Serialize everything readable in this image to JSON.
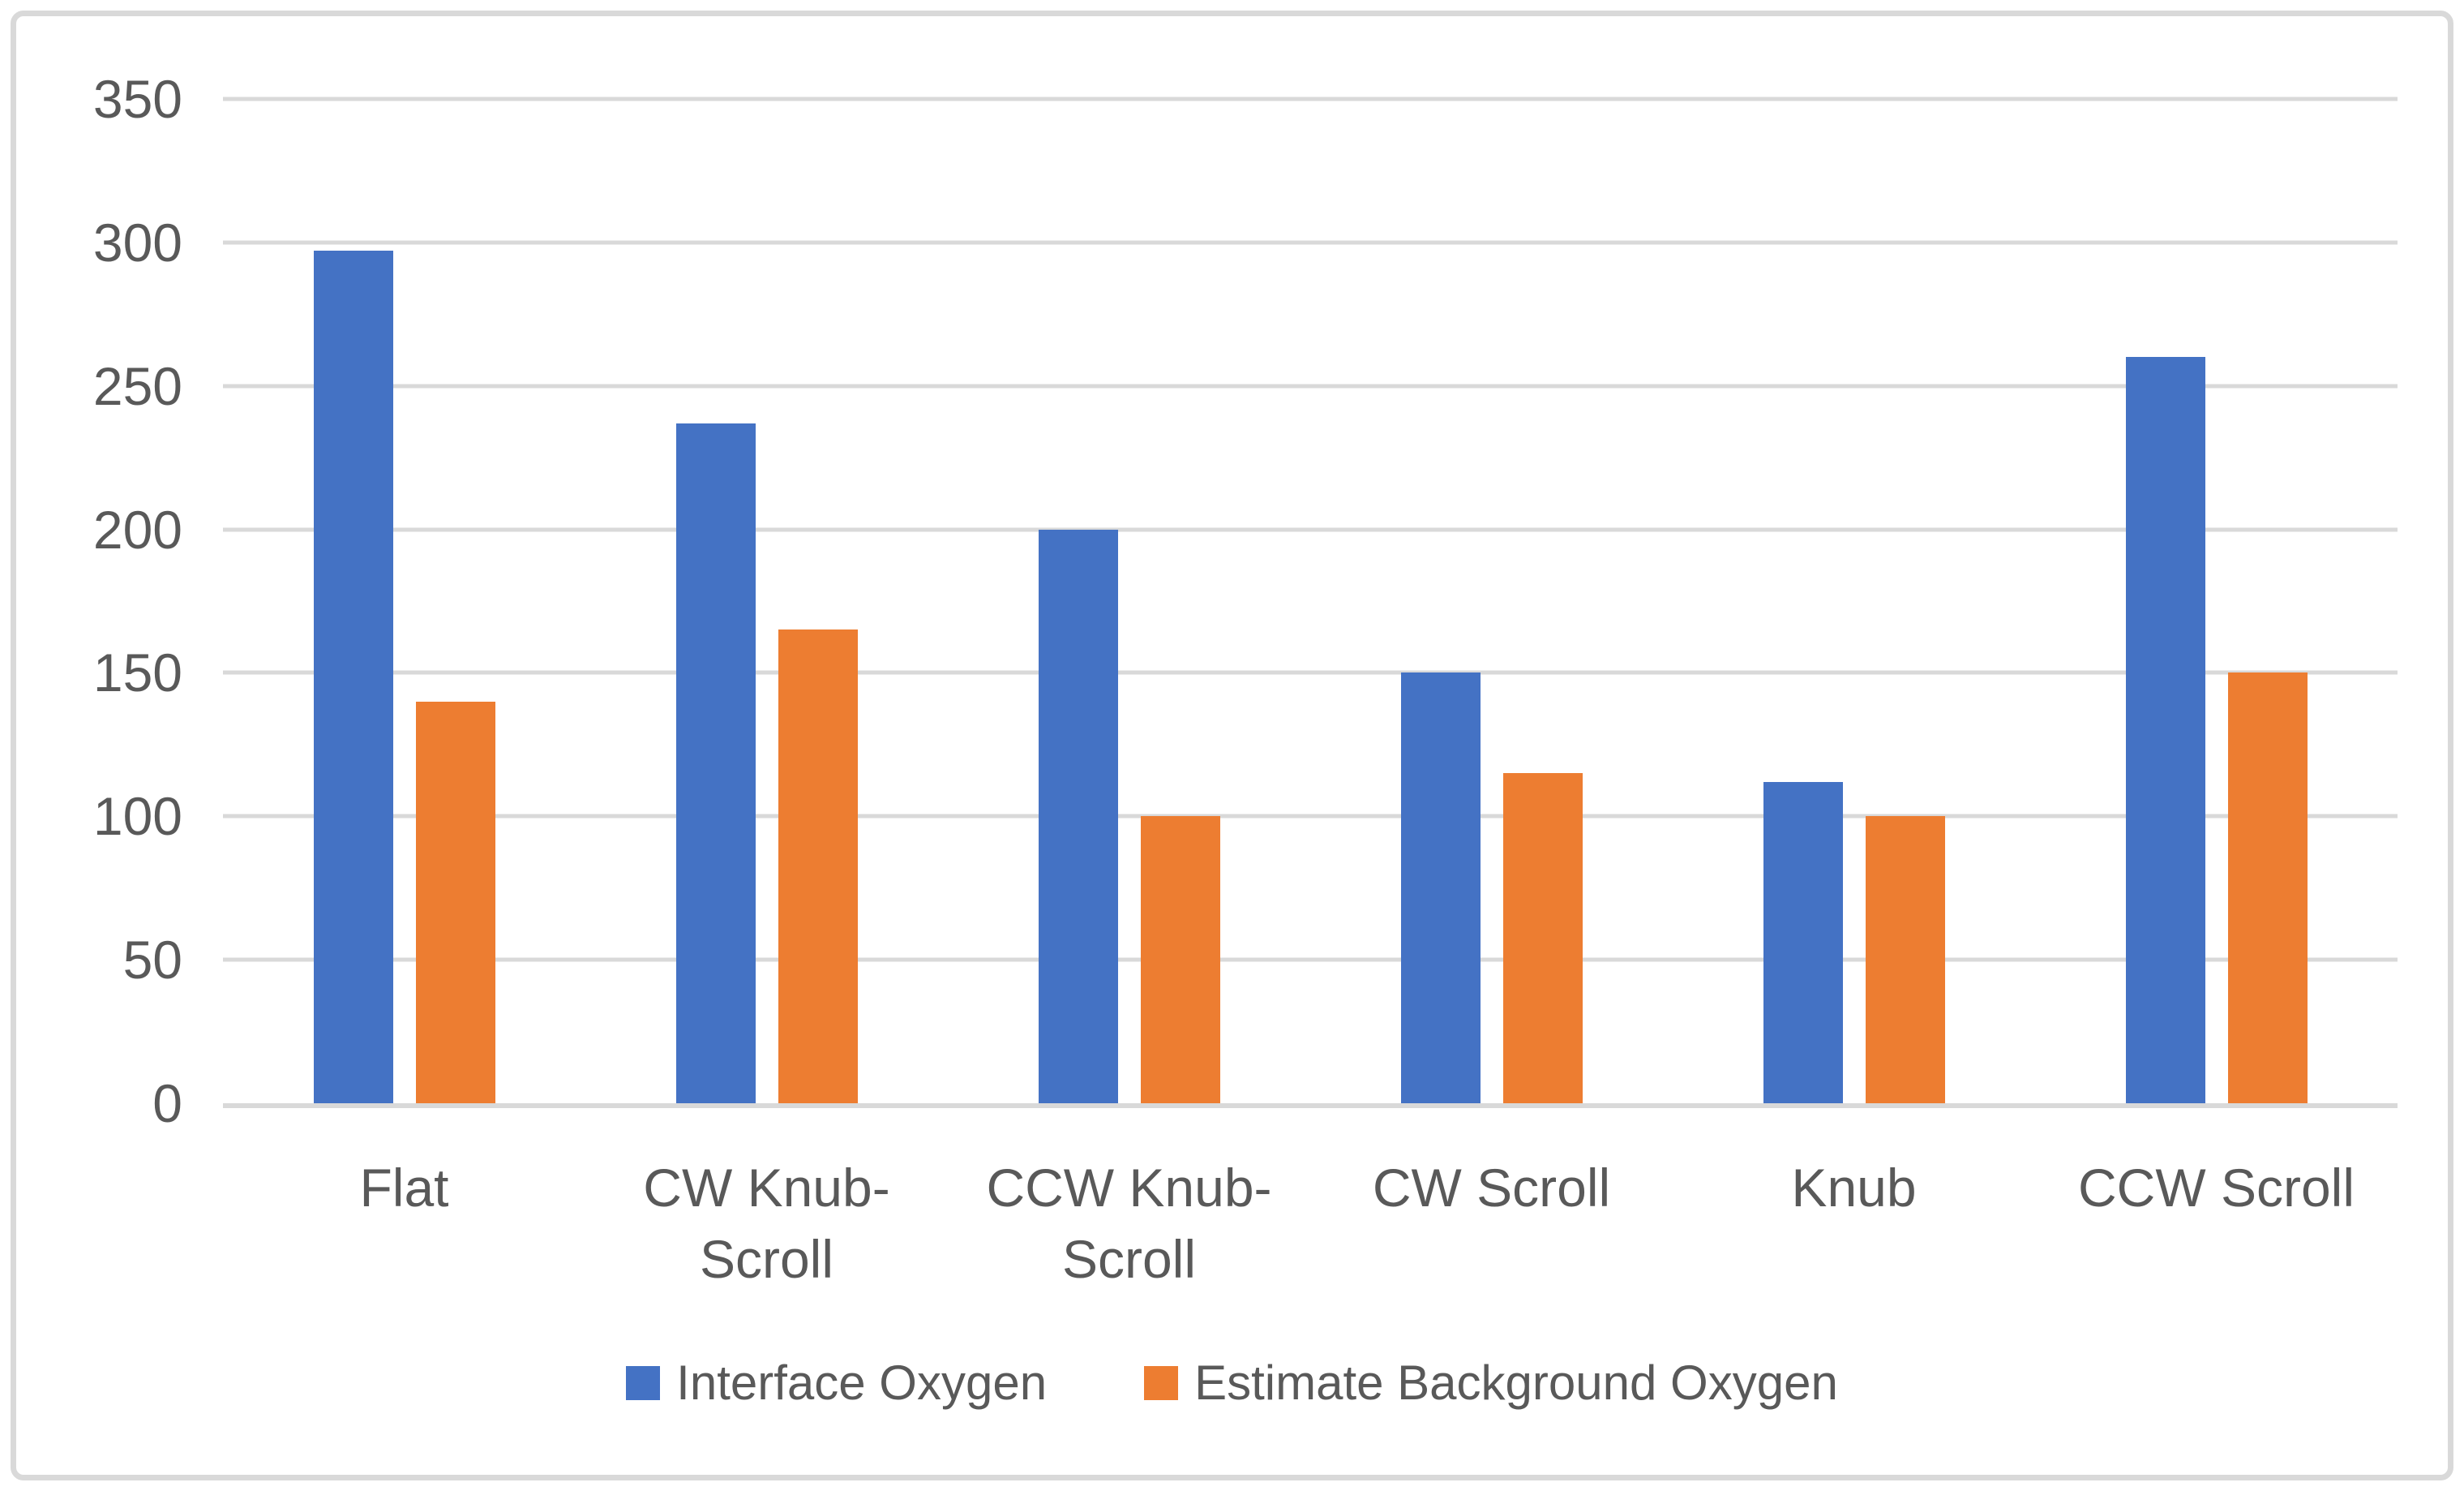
{
  "chart_data": {
    "type": "bar",
    "title": "",
    "xlabel": "",
    "ylabel": "",
    "categories": [
      "Flat",
      "CW Knub-Scroll",
      "CCW Knub-Scroll",
      "CW Scroll",
      "Knub",
      "CCW Scroll"
    ],
    "series": [
      {
        "name": "Interface Oxygen",
        "color": "#4472C4",
        "values": [
          297,
          237,
          200,
          150,
          112,
          260
        ]
      },
      {
        "name": "Estimate Background Oxygen",
        "color": "#ED7D31",
        "values": [
          140,
          165,
          100,
          115,
          100,
          150
        ]
      }
    ],
    "ylim": [
      0,
      350
    ],
    "ytick_interval": 50,
    "grid": true,
    "legend_position": "bottom"
  },
  "yaxis": {
    "ticks": [
      "0",
      "50",
      "100",
      "150",
      "200",
      "250",
      "300",
      "350"
    ]
  },
  "xaxis": {
    "ticks": [
      {
        "lines": [
          "Flat"
        ]
      },
      {
        "lines": [
          "CW Knub-",
          "Scroll"
        ]
      },
      {
        "lines": [
          "CCW Knub-",
          "Scroll"
        ]
      },
      {
        "lines": [
          "CW Scroll"
        ]
      },
      {
        "lines": [
          "Knub"
        ]
      },
      {
        "lines": [
          "CCW Scroll"
        ]
      }
    ]
  },
  "legend": {
    "items": [
      {
        "label": "Interface Oxygen",
        "color": "#4472C4"
      },
      {
        "label": "Estimate Background Oxygen",
        "color": "#ED7D31"
      }
    ]
  },
  "colors": {
    "gridline": "#D9D9D9",
    "frame_border": "#D9D9D9",
    "axis_text": "#595959",
    "background": "#FFFFFF"
  }
}
